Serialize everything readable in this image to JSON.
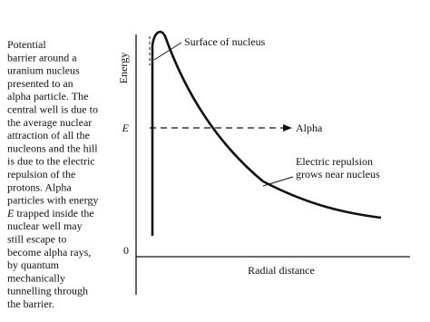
{
  "caption": {
    "lines": [
      "Potential",
      "barrier around a",
      "uranium nucleus",
      "presented to an",
      "alpha particle. The",
      "central well is due to",
      "the average nuclear",
      "attraction of all the",
      "nucleons and the hill",
      "is due to the electric",
      "repulsion of the",
      "protons. Alpha",
      "particles with energy",
      {
        "emphasis": "E",
        "text": " trapped inside the"
      },
      "nuclear well may",
      "still escape to",
      "become alpha rays,",
      "by quantum",
      "mechanically",
      "tunnelling through",
      "the barrier."
    ]
  },
  "figure": {
    "y_axis_label": "Energy",
    "x_axis_label": "Radial distance",
    "energy_tick": "E",
    "zero_tick": "0",
    "surface_label": "Surface of nucleus",
    "alpha_label": "Alpha",
    "repulsion_label": [
      "Electric repulsion",
      "grows near nucleus"
    ]
  }
}
